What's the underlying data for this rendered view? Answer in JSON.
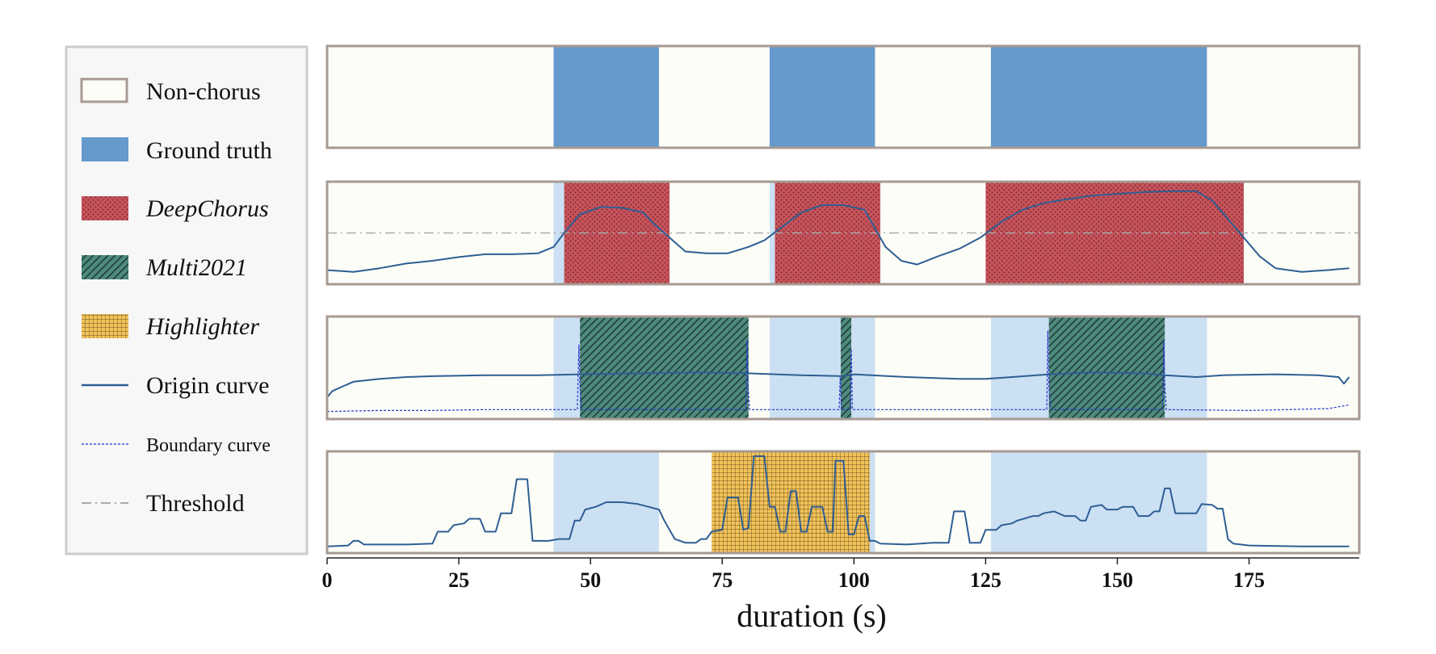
{
  "chart_data": {
    "type": "area",
    "xlabel": "duration (s)",
    "xlim": [
      0,
      195
    ],
    "x_ticks": [
      "0",
      "25",
      "50",
      "75",
      "100",
      "125",
      "150",
      "175"
    ],
    "x_tick_values": [
      0,
      25,
      50,
      75,
      100,
      125,
      150,
      175
    ],
    "threshold": 0.5,
    "colors": {
      "ground_truth": "#6699cc",
      "ground_truth_light": "#cce0f4",
      "deepchorus": "#c8545c",
      "multi2021": "#4e8a7e",
      "highlighter": "#f2c25a",
      "origin_curve": "#2e5e94",
      "boundary_curve": "#2233cc",
      "threshold": "#aaaaaa",
      "panel_bg": "#fdfdf8",
      "frame": "#a79a92"
    },
    "legend": [
      {
        "key": "nonchorus",
        "label": "Non-chorus",
        "italic": false
      },
      {
        "key": "gt",
        "label": "Ground truth",
        "italic": false
      },
      {
        "key": "deepchorus",
        "label": "DeepChorus",
        "italic": true
      },
      {
        "key": "multi2021",
        "label": "Multi2021",
        "italic": true
      },
      {
        "key": "highlighter",
        "label": "Highlighter",
        "italic": true
      },
      {
        "key": "origin",
        "label": "Origin curve",
        "italic": false
      },
      {
        "key": "boundary",
        "label": "Boundary curve",
        "italic": false
      },
      {
        "key": "threshold",
        "label": "Threshold",
        "italic": false
      }
    ],
    "ground_truth": [
      [
        43,
        63
      ],
      [
        84,
        104
      ],
      [
        126,
        167
      ]
    ],
    "panels": [
      {
        "name": "Ground truth",
        "segments": []
      },
      {
        "name": "DeepChorus",
        "segments": [
          [
            45,
            65
          ],
          [
            85,
            105
          ],
          [
            125,
            174
          ]
        ],
        "origin_curve": [
          [
            0,
            0.1
          ],
          [
            5,
            0.08
          ],
          [
            10,
            0.12
          ],
          [
            15,
            0.17
          ],
          [
            20,
            0.2
          ],
          [
            25,
            0.24
          ],
          [
            30,
            0.27
          ],
          [
            35,
            0.27
          ],
          [
            40,
            0.28
          ],
          [
            43,
            0.35
          ],
          [
            45,
            0.5
          ],
          [
            48,
            0.7
          ],
          [
            52,
            0.78
          ],
          [
            56,
            0.77
          ],
          [
            60,
            0.72
          ],
          [
            62,
            0.6
          ],
          [
            65,
            0.45
          ],
          [
            68,
            0.3
          ],
          [
            72,
            0.28
          ],
          [
            76,
            0.28
          ],
          [
            80,
            0.35
          ],
          [
            83,
            0.42
          ],
          [
            86,
            0.55
          ],
          [
            90,
            0.72
          ],
          [
            94,
            0.8
          ],
          [
            98,
            0.8
          ],
          [
            102,
            0.75
          ],
          [
            104,
            0.55
          ],
          [
            106,
            0.35
          ],
          [
            109,
            0.2
          ],
          [
            112,
            0.16
          ],
          [
            116,
            0.25
          ],
          [
            120,
            0.33
          ],
          [
            124,
            0.45
          ],
          [
            128,
            0.62
          ],
          [
            132,
            0.75
          ],
          [
            136,
            0.82
          ],
          [
            140,
            0.86
          ],
          [
            145,
            0.9
          ],
          [
            150,
            0.92
          ],
          [
            155,
            0.94
          ],
          [
            160,
            0.95
          ],
          [
            165,
            0.95
          ],
          [
            168,
            0.85
          ],
          [
            171,
            0.65
          ],
          [
            174,
            0.45
          ],
          [
            177,
            0.25
          ],
          [
            180,
            0.12
          ],
          [
            185,
            0.08
          ],
          [
            190,
            0.1
          ],
          [
            194,
            0.12
          ]
        ]
      },
      {
        "name": "Multi2021",
        "segments": [
          [
            48,
            80
          ],
          [
            97.5,
            99.5
          ],
          [
            137,
            159
          ]
        ],
        "origin_curve": [
          [
            0,
            0.18
          ],
          [
            1,
            0.25
          ],
          [
            3,
            0.3
          ],
          [
            5,
            0.35
          ],
          [
            10,
            0.38
          ],
          [
            15,
            0.4
          ],
          [
            20,
            0.41
          ],
          [
            30,
            0.42
          ],
          [
            40,
            0.42
          ],
          [
            48,
            0.43
          ],
          [
            60,
            0.44
          ],
          [
            70,
            0.45
          ],
          [
            80,
            0.44
          ],
          [
            90,
            0.42
          ],
          [
            98,
            0.41
          ],
          [
            100,
            0.43
          ],
          [
            110,
            0.4
          ],
          [
            120,
            0.38
          ],
          [
            125,
            0.38
          ],
          [
            130,
            0.4
          ],
          [
            137,
            0.43
          ],
          [
            145,
            0.45
          ],
          [
            155,
            0.44
          ],
          [
            159,
            0.42
          ],
          [
            165,
            0.4
          ],
          [
            170,
            0.42
          ],
          [
            180,
            0.43
          ],
          [
            188,
            0.42
          ],
          [
            192,
            0.4
          ],
          [
            193,
            0.33
          ],
          [
            194,
            0.4
          ]
        ],
        "boundary_curve": [
          [
            0,
            0.03
          ],
          [
            10,
            0.04
          ],
          [
            20,
            0.04
          ],
          [
            30,
            0.05
          ],
          [
            40,
            0.05
          ],
          [
            47.5,
            0.05
          ],
          [
            47.8,
            0.75
          ],
          [
            48,
            0.3
          ],
          [
            48.3,
            0.05
          ],
          [
            79.5,
            0.05
          ],
          [
            79.7,
            0.8
          ],
          [
            79.9,
            0.3
          ],
          [
            80.2,
            0.05
          ],
          [
            97.2,
            0.05
          ],
          [
            97.4,
            0.4
          ],
          [
            97.6,
            0.05
          ],
          [
            99.3,
            0.05
          ],
          [
            99.5,
            0.7
          ],
          [
            99.7,
            0.05
          ],
          [
            136.6,
            0.05
          ],
          [
            136.8,
            0.9
          ],
          [
            137,
            0.3
          ],
          [
            137.3,
            0.05
          ],
          [
            158.6,
            0.05
          ],
          [
            158.8,
            0.8
          ],
          [
            159,
            0.3
          ],
          [
            159.3,
            0.05
          ],
          [
            175,
            0.04
          ],
          [
            190,
            0.06
          ],
          [
            194,
            0.1
          ]
        ]
      },
      {
        "name": "Highlighter",
        "segments": [
          [
            73,
            103
          ]
        ],
        "origin_curve": [
          [
            0,
            0.02
          ],
          [
            4,
            0.03
          ],
          [
            5,
            0.08
          ],
          [
            6,
            0.08
          ],
          [
            7,
            0.04
          ],
          [
            15,
            0.04
          ],
          [
            20,
            0.05
          ],
          [
            21,
            0.18
          ],
          [
            23,
            0.18
          ],
          [
            24,
            0.25
          ],
          [
            26,
            0.27
          ],
          [
            27,
            0.32
          ],
          [
            29,
            0.32
          ],
          [
            30,
            0.18
          ],
          [
            32,
            0.18
          ],
          [
            33,
            0.38
          ],
          [
            35,
            0.38
          ],
          [
            36,
            0.75
          ],
          [
            38,
            0.75
          ],
          [
            39,
            0.08
          ],
          [
            42,
            0.08
          ],
          [
            44,
            0.1
          ],
          [
            46,
            0.1
          ],
          [
            47,
            0.3
          ],
          [
            48,
            0.3
          ],
          [
            49,
            0.42
          ],
          [
            51,
            0.45
          ],
          [
            53,
            0.5
          ],
          [
            56,
            0.5
          ],
          [
            59,
            0.48
          ],
          [
            61,
            0.45
          ],
          [
            63,
            0.42
          ],
          [
            64,
            0.3
          ],
          [
            66,
            0.1
          ],
          [
            68,
            0.06
          ],
          [
            70,
            0.06
          ],
          [
            71,
            0.1
          ],
          [
            72,
            0.1
          ],
          [
            73,
            0.18
          ],
          [
            75,
            0.2
          ],
          [
            76,
            0.55
          ],
          [
            78,
            0.55
          ],
          [
            79,
            0.2
          ],
          [
            80,
            0.22
          ],
          [
            81,
            1
          ],
          [
            83,
            1
          ],
          [
            84,
            0.45
          ],
          [
            85,
            0.45
          ],
          [
            86,
            0.18
          ],
          [
            87,
            0.18
          ],
          [
            88,
            0.62
          ],
          [
            89,
            0.62
          ],
          [
            90,
            0.18
          ],
          [
            91,
            0.18
          ],
          [
            92,
            0.45
          ],
          [
            94,
            0.45
          ],
          [
            95,
            0.18
          ],
          [
            96,
            0.18
          ],
          [
            96.5,
            0.95
          ],
          [
            98,
            0.95
          ],
          [
            99,
            0.15
          ],
          [
            100,
            0.15
          ],
          [
            101,
            0.35
          ],
          [
            102,
            0.35
          ],
          [
            103,
            0.08
          ],
          [
            104,
            0.08
          ],
          [
            105,
            0.05
          ],
          [
            110,
            0.04
          ],
          [
            115,
            0.06
          ],
          [
            118,
            0.06
          ],
          [
            119,
            0.4
          ],
          [
            121,
            0.4
          ],
          [
            122,
            0.06
          ],
          [
            124,
            0.06
          ],
          [
            125,
            0.2
          ],
          [
            127,
            0.2
          ],
          [
            128,
            0.25
          ],
          [
            130,
            0.27
          ],
          [
            131,
            0.3
          ],
          [
            134,
            0.35
          ],
          [
            135,
            0.35
          ],
          [
            136,
            0.38
          ],
          [
            138,
            0.4
          ],
          [
            140,
            0.35
          ],
          [
            142,
            0.35
          ],
          [
            143,
            0.3
          ],
          [
            144,
            0.3
          ],
          [
            145,
            0.45
          ],
          [
            147,
            0.47
          ],
          [
            148,
            0.42
          ],
          [
            150,
            0.42
          ],
          [
            151,
            0.45
          ],
          [
            153,
            0.45
          ],
          [
            154,
            0.35
          ],
          [
            156,
            0.35
          ],
          [
            157,
            0.4
          ],
          [
            158,
            0.4
          ],
          [
            159,
            0.65
          ],
          [
            160,
            0.65
          ],
          [
            161,
            0.38
          ],
          [
            165,
            0.38
          ],
          [
            166,
            0.48
          ],
          [
            168,
            0.47
          ],
          [
            169,
            0.43
          ],
          [
            170,
            0.43
          ],
          [
            171,
            0.1
          ],
          [
            172,
            0.05
          ],
          [
            175,
            0.03
          ],
          [
            185,
            0.02
          ],
          [
            194,
            0.02
          ]
        ]
      }
    ]
  }
}
